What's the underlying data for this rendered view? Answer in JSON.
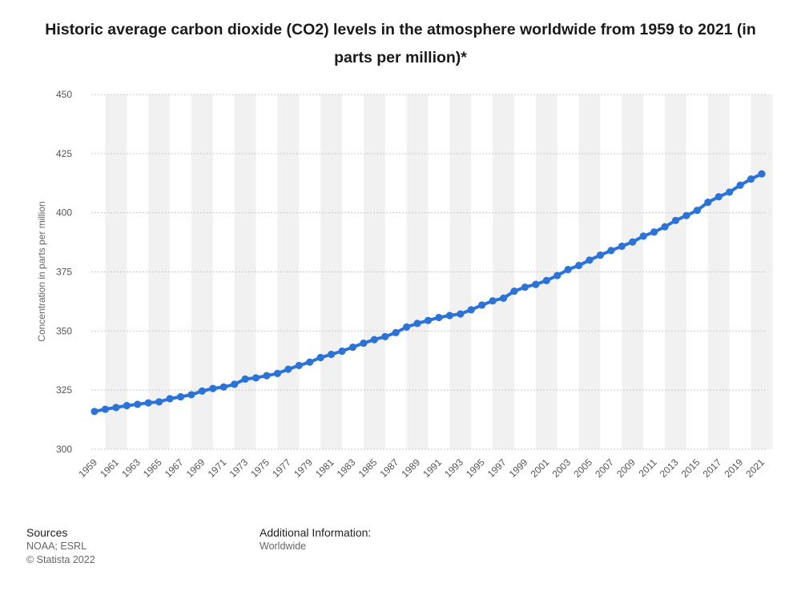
{
  "title": "Historic average carbon dioxide (CO2) levels in the atmosphere worldwide from 1959 to 2021 (in parts per million)*",
  "footer": {
    "sources_heading": "Sources",
    "sources_line1": "NOAA; ESRL",
    "sources_line2": "© Statista 2022",
    "additional_heading": "Additional Information:",
    "additional_text": "Worldwide"
  },
  "colors": {
    "series": "#2b73d6",
    "band": "#f1f1f1",
    "grid": "#c8c8c8",
    "tick_text": "#555555"
  },
  "chart_data": {
    "type": "line",
    "title": "Historic average carbon dioxide (CO2) levels in the atmosphere worldwide from 1959 to 2021 (in parts per million)*",
    "xlabel": "",
    "ylabel": "Concentration in parts per million",
    "ylim": [
      300,
      450
    ],
    "yticks": [
      300,
      325,
      350,
      375,
      400,
      425,
      450
    ],
    "xtick_labels": [
      "1959",
      "1961",
      "1963",
      "1965",
      "1967",
      "1969",
      "1971",
      "1973",
      "1975",
      "1977",
      "1979",
      "1981",
      "1983",
      "1985",
      "1987",
      "1989",
      "1991",
      "1993",
      "1995",
      "1997",
      "1999",
      "2001",
      "2003",
      "2005",
      "2007",
      "2009",
      "2011",
      "2013",
      "2015",
      "2017",
      "2019",
      "2021"
    ],
    "grid": true,
    "legend": "none",
    "x": [
      1959,
      1960,
      1961,
      1962,
      1963,
      1964,
      1965,
      1966,
      1967,
      1968,
      1969,
      1970,
      1971,
      1972,
      1973,
      1974,
      1975,
      1976,
      1977,
      1978,
      1979,
      1980,
      1981,
      1982,
      1983,
      1984,
      1985,
      1986,
      1987,
      1988,
      1989,
      1990,
      1991,
      1992,
      1993,
      1994,
      1995,
      1996,
      1997,
      1998,
      1999,
      2000,
      2001,
      2002,
      2003,
      2004,
      2005,
      2006,
      2007,
      2008,
      2009,
      2010,
      2011,
      2012,
      2013,
      2014,
      2015,
      2016,
      2017,
      2018,
      2019,
      2020,
      2021
    ],
    "series": [
      {
        "values": [
          315.98,
          316.91,
          317.64,
          318.45,
          318.99,
          319.62,
          320.04,
          321.37,
          322.18,
          323.05,
          324.62,
          325.68,
          326.32,
          327.46,
          329.68,
          330.19,
          331.13,
          332.03,
          333.84,
          335.41,
          336.84,
          338.76,
          340.12,
          341.48,
          343.15,
          344.85,
          346.35,
          347.61,
          349.31,
          351.69,
          353.2,
          354.45,
          355.7,
          356.54,
          357.21,
          358.96,
          360.97,
          362.74,
          363.88,
          366.84,
          368.54,
          369.71,
          371.32,
          373.45,
          375.98,
          377.7,
          379.98,
          382.09,
          384.02,
          385.83,
          387.64,
          390.1,
          391.85,
          394.06,
          396.74,
          398.81,
          401.01,
          404.41,
          406.76,
          408.72,
          411.66,
          414.24,
          416.45
        ]
      }
    ]
  }
}
